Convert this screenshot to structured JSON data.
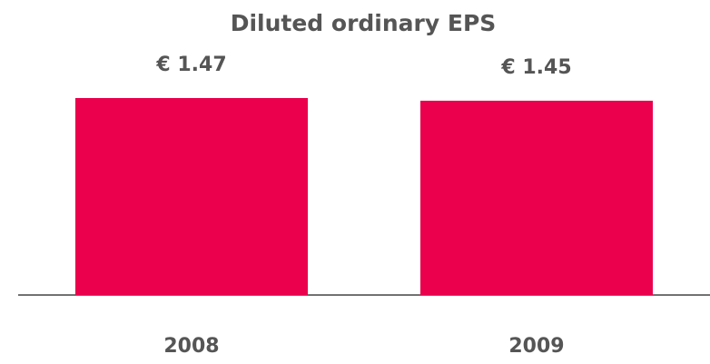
{
  "chart_data": {
    "type": "bar",
    "title": "Diluted ordinary EPS",
    "categories": [
      "2008",
      "2009"
    ],
    "values": [
      1.47,
      1.45
    ],
    "value_labels": [
      "€ 1.47",
      "€ 1.45"
    ],
    "color": "#ea004c"
  }
}
